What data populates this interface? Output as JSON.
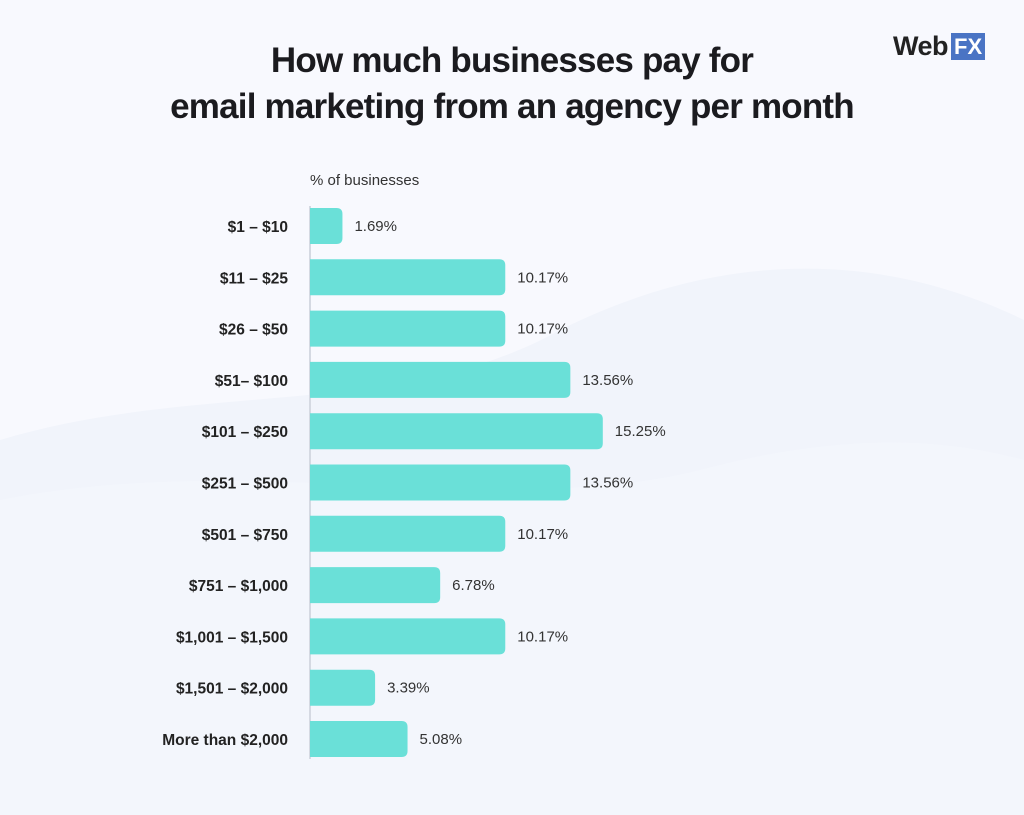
{
  "title_lines": [
    "How much businesses pay for",
    "email marketing from an agency per month"
  ],
  "logo": {
    "text_main": "Web",
    "text_box": "FX",
    "box_color": "#4a74c4"
  },
  "chart_data": {
    "type": "bar",
    "orientation": "horizontal",
    "title": "How much businesses pay for email marketing from an agency per month",
    "xlabel": "% of businesses",
    "ylabel": "",
    "categories": [
      "$1 – $10",
      "$11 – $25",
      "$26 – $50",
      "$51– $100",
      "$101 – $250",
      "$251 – $500",
      "$501 – $750",
      "$751 – $1,000",
      "$1,001 – $1,500",
      "$1,501 – $2,000",
      "More than $2,000"
    ],
    "values": [
      1.69,
      10.17,
      10.17,
      13.56,
      15.25,
      13.56,
      10.17,
      6.78,
      10.17,
      3.39,
      5.08
    ],
    "value_labels": [
      "1.69%",
      "10.17%",
      "10.17%",
      "13.56%",
      "15.25%",
      "13.56%",
      "10.17%",
      "6.78%",
      "10.17%",
      "3.39%",
      "5.08%"
    ],
    "bar_color": "#6ae0d8",
    "grid": false
  }
}
